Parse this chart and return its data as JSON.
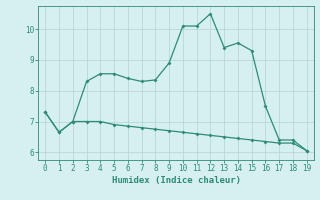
{
  "xlabel": "Humidex (Indice chaleur)",
  "x": [
    0,
    1,
    2,
    3,
    4,
    5,
    6,
    7,
    8,
    9,
    10,
    11,
    12,
    13,
    14,
    15,
    16,
    17,
    18,
    19
  ],
  "line1_y": [
    7.3,
    6.65,
    7.0,
    8.3,
    8.55,
    8.55,
    8.4,
    8.3,
    8.35,
    8.9,
    10.1,
    10.1,
    10.5,
    9.4,
    9.55,
    9.3,
    7.5,
    6.4,
    6.4,
    6.05
  ],
  "line2_y": [
    7.3,
    6.65,
    7.0,
    7.0,
    7.0,
    6.9,
    6.85,
    6.8,
    6.75,
    6.7,
    6.65,
    6.6,
    6.55,
    6.5,
    6.45,
    6.4,
    6.35,
    6.3,
    6.3,
    6.05
  ],
  "line_color": "#2e8b74",
  "bg_color": "#d6f0ef",
  "grid_color": "#b8d8d8",
  "ylim": [
    5.75,
    10.75
  ],
  "xlim": [
    -0.5,
    19.5
  ],
  "yticks": [
    6,
    7,
    8,
    9,
    10
  ],
  "xticks": [
    0,
    1,
    2,
    3,
    4,
    5,
    6,
    7,
    8,
    9,
    10,
    11,
    12,
    13,
    14,
    15,
    16,
    17,
    18,
    19
  ]
}
